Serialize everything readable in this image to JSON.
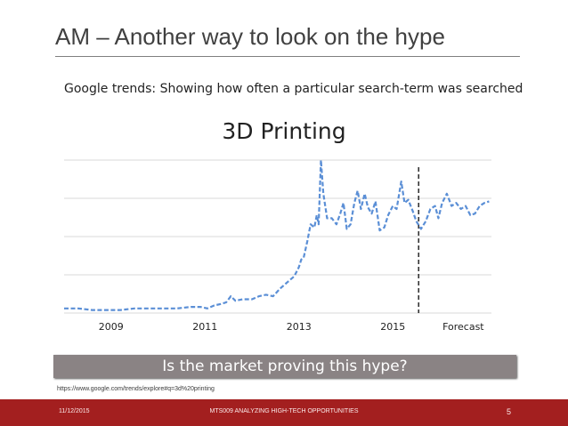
{
  "slide": {
    "title": "AM – Another way to look on the hype",
    "subtitle": "Google trends: Showing how often a particular search-term was searched",
    "banner": "Is the market proving this hype?",
    "source_link": "https://www.google.com/trends/explore#q=3d%20printing",
    "footer": {
      "date": "11/12/2015",
      "course": "MTS009 ANALYZING HIGH-TECH OPPORTUNITIES",
      "page": "5"
    }
  },
  "colors": {
    "line": "#5b8fd6",
    "grid": "#d9d9d9",
    "forecast_line": "#333333",
    "banner_bg": "#8a8384",
    "footer_bg": "#a31f1f"
  },
  "chart_data": {
    "type": "line",
    "title": "3D Printing",
    "x_tick_labels": [
      {
        "x": 2009,
        "label": "2009"
      },
      {
        "x": 2011,
        "label": "2011"
      },
      {
        "x": 2013,
        "label": "2013"
      },
      {
        "x": 2015,
        "label": "2015"
      },
      {
        "x": 2016.5,
        "label": "Forecast"
      }
    ],
    "xlim": [
      2008.0,
      2017.1
    ],
    "ylim": [
      0,
      100
    ],
    "grid": true,
    "forecast_divider_x": 2015.55,
    "line_style": "dashed",
    "series": [
      {
        "points": [
          [
            2008.0,
            3
          ],
          [
            2008.3,
            3
          ],
          [
            2008.6,
            2
          ],
          [
            2008.9,
            2
          ],
          [
            2009.2,
            2
          ],
          [
            2009.5,
            3
          ],
          [
            2009.8,
            3
          ],
          [
            2010.1,
            3
          ],
          [
            2010.4,
            3
          ],
          [
            2010.7,
            4
          ],
          [
            2010.9,
            4
          ],
          [
            2011.05,
            3
          ],
          [
            2011.2,
            5
          ],
          [
            2011.35,
            6
          ],
          [
            2011.45,
            7
          ],
          [
            2011.55,
            11
          ],
          [
            2011.65,
            8
          ],
          [
            2011.8,
            9
          ],
          [
            2012.0,
            9
          ],
          [
            2012.15,
            11
          ],
          [
            2012.3,
            12
          ],
          [
            2012.45,
            11
          ],
          [
            2012.6,
            16
          ],
          [
            2012.75,
            20
          ],
          [
            2012.9,
            24
          ],
          [
            2013.0,
            30
          ],
          [
            2013.05,
            35
          ],
          [
            2013.1,
            36
          ],
          [
            2013.18,
            47
          ],
          [
            2013.25,
            58
          ],
          [
            2013.33,
            56
          ],
          [
            2013.38,
            64
          ],
          [
            2013.42,
            58
          ],
          [
            2013.47,
            100
          ],
          [
            2013.52,
            78
          ],
          [
            2013.6,
            62
          ],
          [
            2013.7,
            62
          ],
          [
            2013.8,
            58
          ],
          [
            2013.88,
            65
          ],
          [
            2013.95,
            72
          ],
          [
            2014.02,
            55
          ],
          [
            2014.1,
            58
          ],
          [
            2014.18,
            72
          ],
          [
            2014.25,
            80
          ],
          [
            2014.32,
            68
          ],
          [
            2014.4,
            78
          ],
          [
            2014.47,
            69
          ],
          [
            2014.55,
            65
          ],
          [
            2014.63,
            73
          ],
          [
            2014.72,
            54
          ],
          [
            2014.82,
            56
          ],
          [
            2014.9,
            64
          ],
          [
            2015.0,
            70
          ],
          [
            2015.08,
            68
          ],
          [
            2015.18,
            86
          ],
          [
            2015.25,
            72
          ],
          [
            2015.33,
            74
          ],
          [
            2015.42,
            67
          ],
          [
            2015.5,
            60
          ],
          [
            2015.6,
            55
          ],
          [
            2015.7,
            60
          ],
          [
            2015.8,
            68
          ],
          [
            2015.9,
            70
          ],
          [
            2015.97,
            62
          ],
          [
            2016.05,
            72
          ],
          [
            2016.15,
            78
          ],
          [
            2016.25,
            70
          ],
          [
            2016.35,
            72
          ],
          [
            2016.45,
            68
          ],
          [
            2016.55,
            70
          ],
          [
            2016.65,
            64
          ],
          [
            2016.75,
            65
          ],
          [
            2016.85,
            70
          ],
          [
            2016.95,
            72
          ],
          [
            2017.05,
            73
          ]
        ]
      }
    ]
  }
}
